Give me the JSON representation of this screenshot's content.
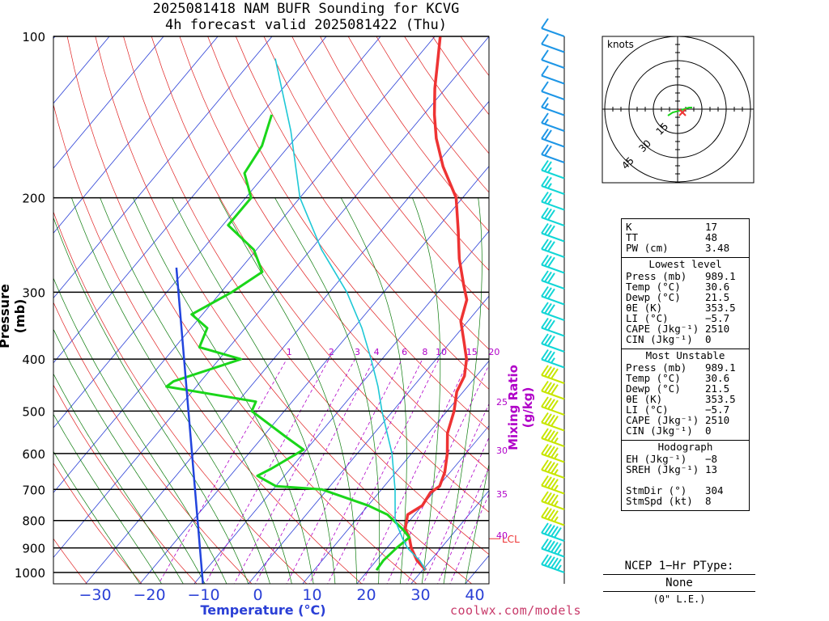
{
  "title": {
    "line1": "2025081418 NAM BUFR Sounding for KCVG",
    "line2": "4h forecast valid 2025081422 (Thu)"
  },
  "colors": {
    "temperature": "#ee3333",
    "dewpoint": "#1ad61a",
    "parcel": "#1ec8d6",
    "parcel_lcl": "#2244dd",
    "isotherm": "#2a3fd6",
    "dry_adiabat": "#e02020",
    "moist_adiabat": "#0a7a0a",
    "mixing_ratio": "#b000c8"
  },
  "chart_data": {
    "type": "line",
    "title": "2025081418 NAM BUFR Sounding for KCVG",
    "xlabel": "Temperature (°C)",
    "ylabel": "Pressure (mb)",
    "y2label": "Mixing Ratio (g/kg)",
    "xlim": [
      -38,
      42
    ],
    "ylim": [
      1000,
      100
    ],
    "y_scale": "log",
    "x_ticks": [
      "−30",
      "−20",
      "−10",
      "0",
      "10",
      "20",
      "30",
      "40"
    ],
    "x_tick_values": [
      -30,
      -20,
      -10,
      0,
      10,
      20,
      30,
      40
    ],
    "y_ticks": [
      "100",
      "200",
      "300",
      "400",
      "500",
      "600",
      "700",
      "800",
      "900",
      "1000"
    ],
    "y_tick_values": [
      100,
      200,
      300,
      400,
      500,
      600,
      700,
      800,
      900,
      1000
    ],
    "mixing_ratio_labels": [
      "1",
      "2",
      "3",
      "4",
      "6",
      "8",
      "10",
      "15",
      "20",
      "25",
      "30",
      "35",
      "40"
    ],
    "lcl_label": "LCL",
    "lcl_pressure": 865,
    "series": [
      {
        "name": "Temperature",
        "p": [
          990,
          950,
          900,
          860,
          830,
          780,
          750,
          710,
          690,
          650,
          600,
          550,
          500,
          460,
          430,
          400,
          370,
          340,
          310,
          290,
          260,
          230,
          200,
          175,
          155,
          140,
          125,
          110,
          100
        ],
        "t": [
          30.6,
          27.5,
          24.5,
          22.5,
          20.5,
          18.7,
          20,
          19.5,
          20.2,
          19,
          16.6,
          13.5,
          11.3,
          8.8,
          7.8,
          5.6,
          2.3,
          -1.3,
          -3.5,
          -6.5,
          -11.2,
          -15.8,
          -21.2,
          -28.4,
          -34,
          -38,
          -42,
          -46,
          -49
        ]
      },
      {
        "name": "Dewpoint",
        "p": [
          990,
          950,
          900,
          860,
          830,
          780,
          750,
          700,
          690,
          660,
          640,
          590,
          560,
          500,
          480,
          450,
          440,
          400,
          380,
          350,
          330,
          300,
          275,
          250,
          225,
          200,
          180,
          160,
          140
        ],
        "t": [
          21.5,
          21.3,
          21.8,
          22.5,
          20,
          15,
          10,
          -1,
          -10,
          -15,
          -13.5,
          -10.5,
          -15.5,
          -26,
          -26.7,
          -45.5,
          -45,
          -36,
          -45.5,
          -47,
          -52,
          -48,
          -45.5,
          -50.5,
          -59,
          -59,
          -64,
          -65,
          -68
        ]
      },
      {
        "name": "Parcel",
        "p": [
          990,
          950,
          900,
          865,
          800,
          700,
          600,
          500,
          450,
          400,
          350,
          300,
          250,
          200,
          150,
          110
        ],
        "t": [
          30.6,
          28,
          23.8,
          21.5,
          17.3,
          12.5,
          6.4,
          -2,
          -6.5,
          -12,
          -18.5,
          -26.8,
          -38,
          -50,
          -62,
          -76
        ]
      }
    ],
    "wind_barbs": {
      "units": "knots",
      "dir": [
        0,
        0,
        0,
        0,
        0,
        0,
        0,
        0,
        0,
        0,
        0,
        0,
        0,
        0,
        0,
        0,
        0,
        0,
        0,
        0,
        0,
        0,
        0,
        0,
        0,
        0,
        0,
        0,
        0,
        0,
        0,
        0,
        0,
        0,
        0
      ],
      "spd": [
        55,
        55,
        50,
        45,
        45,
        45,
        45,
        45,
        45,
        40,
        40,
        40,
        40,
        35,
        30,
        30,
        30,
        30,
        30,
        30,
        30,
        30,
        30,
        25,
        25,
        25,
        20,
        20,
        15,
        15,
        10,
        10,
        10,
        10,
        10
      ]
    },
    "hodograph": {
      "units": "knots",
      "rings": [
        15,
        30,
        45
      ],
      "ring_labels": [
        "15",
        "30",
        "45"
      ],
      "u": [
        -6,
        -3,
        1,
        4,
        7,
        9
      ],
      "v": [
        -4,
        -2,
        -1,
        0,
        1,
        1
      ],
      "storm_motion_u": 3,
      "storm_motion_v": -2
    }
  },
  "indices": {
    "rows": [
      {
        "k": "K",
        "v": "17"
      },
      {
        "k": "TT",
        "v": "48"
      },
      {
        "k": "PW (cm)",
        "v": "3.48"
      }
    ],
    "lowest": {
      "header": "Lowest level",
      "rows": [
        {
          "k": "Press (mb)",
          "v": "989.1"
        },
        {
          "k": "Temp (°C)",
          "v": "30.6"
        },
        {
          "k": "Dewp (°C)",
          "v": "21.5"
        },
        {
          "k": "θE (K)",
          "v": "353.5"
        },
        {
          "k": "LI (°C)",
          "v": "−5.7"
        },
        {
          "k": "CAPE (Jkg⁻¹)",
          "v": "2510"
        },
        {
          "k": "CIN (Jkg⁻¹)",
          "v": "0"
        }
      ]
    },
    "unstable": {
      "header": "Most Unstable",
      "rows": [
        {
          "k": "Press (mb)",
          "v": "989.1"
        },
        {
          "k": "Temp (°C)",
          "v": "30.6"
        },
        {
          "k": "Dewp (°C)",
          "v": "21.5"
        },
        {
          "k": "θE (K)",
          "v": "353.5"
        },
        {
          "k": "LI (°C)",
          "v": "−5.7"
        },
        {
          "k": "CAPE (Jkg⁻¹)",
          "v": "2510"
        },
        {
          "k": "CIN (Jkg⁻¹)",
          "v": "0"
        }
      ]
    },
    "hodograph": {
      "header": "Hodograph",
      "rows": [
        {
          "k": "EH (Jkg⁻¹)",
          "v": "−8"
        },
        {
          "k": "SREH (Jkg⁻¹)",
          "v": "13"
        },
        {
          "k": "",
          "v": ""
        },
        {
          "k": "StmDir (°)",
          "v": "304"
        },
        {
          "k": "StmSpd (kt)",
          "v": "8"
        }
      ]
    }
  },
  "ptype": {
    "header": "NCEP 1−Hr PType:",
    "value": "None",
    "note": "(0\" L.E.)"
  },
  "credit": "coolwx.com/models"
}
